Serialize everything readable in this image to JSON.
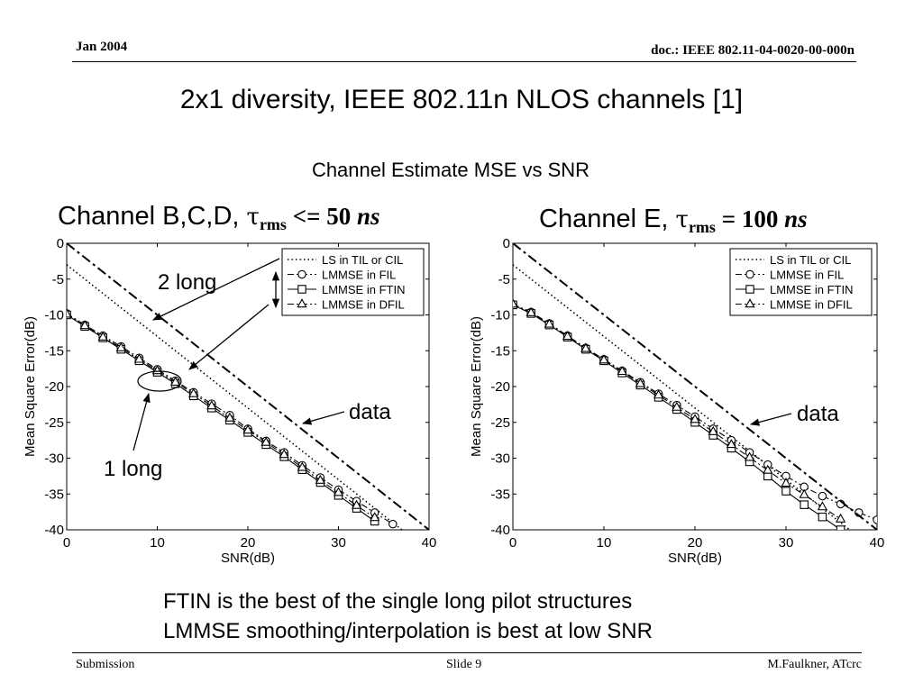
{
  "header": {
    "date": "Jan 2004",
    "doc": "doc.: IEEE 802.11-04-0020-00-000n"
  },
  "title": "2x1 diversity, IEEE 802.11n NLOS channels [1]",
  "subtitle": "Channel Estimate MSE vs  SNR",
  "panels": {
    "left": {
      "prefix": "Channel B,C,D, ",
      "tau": "τ",
      "sub": "rms",
      "cond": " <= 50 ",
      "unit": "ns"
    },
    "right": {
      "prefix": "Channel E, ",
      "tau": "τ",
      "sub": "rms",
      "cond": " = 100 ",
      "unit": "ns"
    }
  },
  "annotations": {
    "left": {
      "two_long": "2 long",
      "one_long": "1 long",
      "data": "data"
    },
    "right": {
      "data": "data"
    }
  },
  "bullets": [
    "FTIN is the best of the single long pilot structures",
    "LMMSE smoothing/interpolation is best at low SNR"
  ],
  "footer": {
    "left": "Submission",
    "center": "Slide 9",
    "right": "M.Faulkner, ATcrc"
  },
  "chart_data": [
    {
      "type": "line",
      "xlabel": "SNR(dB)",
      "ylabel": "Mean Square Error(dB)",
      "xlim": [
        0,
        40
      ],
      "ylim": [
        -40,
        0
      ],
      "xticks": [
        0,
        10,
        20,
        30,
        40
      ],
      "yticks": [
        0,
        -5,
        -10,
        -15,
        -20,
        -25,
        -30,
        -35,
        -40
      ],
      "legend": "top-right",
      "grid": false,
      "series": [
        {
          "name": "LS in TIL or CIL",
          "style": "dotted",
          "marker": "none",
          "x": [
            0,
            37
          ],
          "y": [
            -3,
            -40
          ]
        },
        {
          "name": "LMMSE in FIL",
          "style": "dashdot",
          "marker": "circle",
          "x": [
            0,
            2,
            4,
            6,
            8,
            10,
            12,
            14,
            16,
            18,
            20,
            22,
            24,
            26,
            28,
            30,
            32,
            34,
            36
          ],
          "y": [
            -9.8,
            -11.4,
            -12.9,
            -14.4,
            -16.0,
            -17.6,
            -19.2,
            -20.8,
            -22.4,
            -24.0,
            -25.9,
            -27.6,
            -29.2,
            -31.0,
            -32.7,
            -34.4,
            -36.0,
            -37.6,
            -39.2
          ]
        },
        {
          "name": "LMMSE in FTIN",
          "style": "solid",
          "marker": "square",
          "x": [
            0,
            2,
            4,
            6,
            8,
            10,
            12,
            14,
            16,
            18,
            20,
            22,
            24,
            26,
            28,
            30,
            32,
            34
          ],
          "y": [
            -10.0,
            -11.6,
            -13.2,
            -14.8,
            -16.4,
            -18.0,
            -19.6,
            -21.3,
            -23.0,
            -24.7,
            -26.4,
            -28.1,
            -29.8,
            -31.6,
            -33.4,
            -35.2,
            -37.0,
            -38.8
          ]
        },
        {
          "name": "LMMSE in DFIL",
          "style": "dashdot",
          "marker": "triangle",
          "x": [
            0,
            2,
            4,
            6,
            8,
            10,
            12,
            14,
            16,
            18,
            20,
            22,
            24,
            26,
            28,
            30,
            32,
            34
          ],
          "y": [
            -9.9,
            -11.5,
            -13.1,
            -14.6,
            -16.2,
            -17.8,
            -19.4,
            -21.0,
            -22.7,
            -24.4,
            -26.1,
            -27.8,
            -29.5,
            -31.3,
            -33.1,
            -34.8,
            -36.6,
            -38.3
          ]
        },
        {
          "name": "",
          "style": "dashdot-heavy",
          "marker": "none",
          "x": [
            0,
            40
          ],
          "y": [
            0,
            -40
          ]
        }
      ]
    },
    {
      "type": "line",
      "xlabel": "SNR(dB)",
      "ylabel": "Mean Square Error(dB)",
      "xlim": [
        0,
        40
      ],
      "ylim": [
        -40,
        0
      ],
      "xticks": [
        0,
        10,
        20,
        30,
        40
      ],
      "yticks": [
        0,
        -5,
        -10,
        -15,
        -20,
        -25,
        -30,
        -35,
        -40
      ],
      "legend": "top-right",
      "grid": false,
      "series": [
        {
          "name": "LS in TIL or CIL",
          "style": "dotted",
          "marker": "none",
          "x": [
            0,
            37
          ],
          "y": [
            -3,
            -40
          ]
        },
        {
          "name": "LMMSE in FIL",
          "style": "dashdot",
          "marker": "circle",
          "x": [
            0,
            2,
            4,
            6,
            8,
            10,
            12,
            14,
            16,
            18,
            20,
            22,
            24,
            26,
            28,
            30,
            32,
            34,
            36,
            38,
            40
          ],
          "y": [
            -8.5,
            -9.6,
            -11.2,
            -12.9,
            -14.6,
            -16.2,
            -17.8,
            -19.4,
            -21.0,
            -22.6,
            -24.2,
            -25.9,
            -27.5,
            -29.2,
            -30.9,
            -32.5,
            -34.0,
            -35.3,
            -36.4,
            -37.6,
            -38.6
          ]
        },
        {
          "name": "LMMSE in FTIN",
          "style": "solid",
          "marker": "square",
          "x": [
            0,
            2,
            4,
            6,
            8,
            10,
            12,
            14,
            16,
            18,
            20,
            22,
            24,
            26,
            28,
            30,
            32,
            34,
            36
          ],
          "y": [
            -8.6,
            -9.8,
            -11.4,
            -13.1,
            -14.8,
            -16.4,
            -18.1,
            -19.8,
            -21.5,
            -23.2,
            -25.0,
            -26.8,
            -28.6,
            -30.5,
            -32.5,
            -34.6,
            -36.5,
            -38.2,
            -40.0
          ]
        },
        {
          "name": "LMMSE in DFIL",
          "style": "dashdot",
          "marker": "triangle",
          "x": [
            0,
            2,
            4,
            6,
            8,
            10,
            12,
            14,
            16,
            18,
            20,
            22,
            24,
            26,
            28,
            30,
            32,
            34,
            36
          ],
          "y": [
            -8.5,
            -9.7,
            -11.3,
            -13.0,
            -14.7,
            -16.3,
            -17.9,
            -19.6,
            -21.2,
            -22.9,
            -24.6,
            -26.3,
            -28.1,
            -29.9,
            -31.7,
            -33.5,
            -35.1,
            -36.8,
            -38.5
          ]
        },
        {
          "name": "",
          "style": "dashdot-heavy",
          "marker": "none",
          "x": [
            0,
            40
          ],
          "y": [
            0,
            -40
          ]
        }
      ]
    }
  ]
}
